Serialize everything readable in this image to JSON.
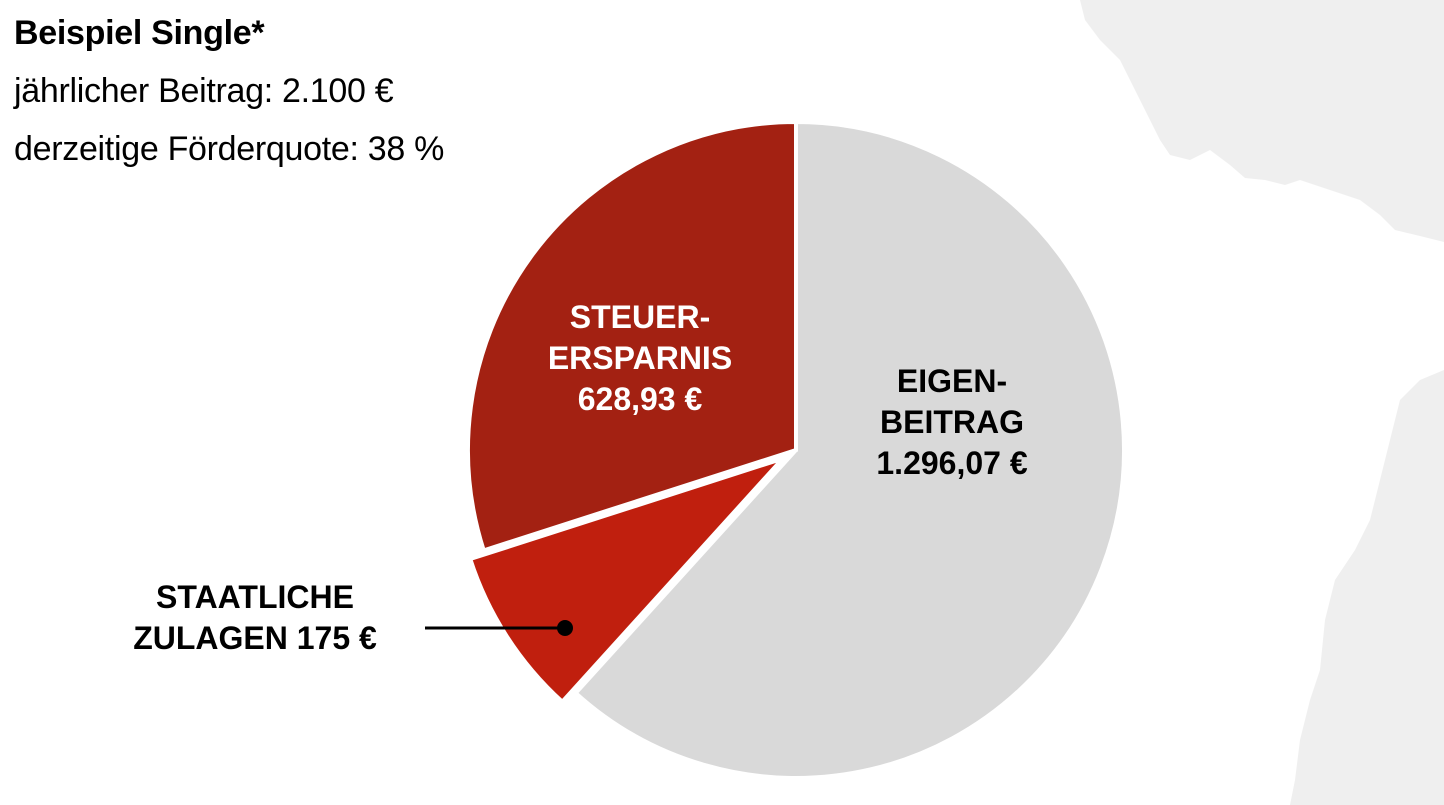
{
  "title": "Beispiel Single*",
  "subtitle_lines": [
    "jährlicher Beitrag: 2.100 €",
    "derzeitige Förderquote: 38 %"
  ],
  "colors": {
    "eigenbeitrag": "#d9d9d9",
    "steuerersparnis": "#a32112",
    "zulagen": "#c01f0e",
    "map": "#efefef"
  },
  "chart_data": {
    "type": "pie",
    "total": 2100,
    "slices": [
      {
        "label_lines": [
          "EIGEN-",
          "BEITRAG",
          "1.296,07 €"
        ],
        "value": 1296.07,
        "color": "#d9d9d9",
        "text_color": "#000000",
        "exploded": false
      },
      {
        "label_lines": [
          "STAATLICHE",
          "ZULAGEN 175 €"
        ],
        "value": 175,
        "color": "#c01f0e",
        "text_color": "#000000",
        "exploded": true,
        "leader_line": true
      },
      {
        "label_lines": [
          "STEUER-",
          "ERSPARNIS",
          "628,93 €"
        ],
        "value": 628.93,
        "color": "#a32112",
        "text_color": "#ffffff",
        "exploded": false
      }
    ]
  }
}
